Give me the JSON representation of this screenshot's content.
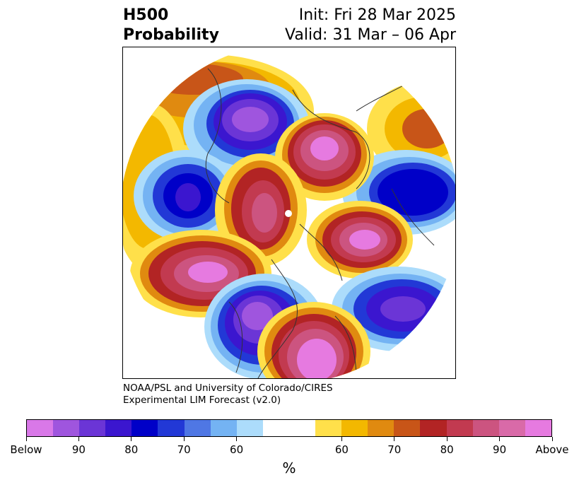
{
  "title": {
    "left_line1": "H500",
    "left_line2": "Probability",
    "right_line1": "Init: Fri 28 Mar 2025",
    "right_line2": "Valid: 31 Mar – 06 Apr"
  },
  "credit": {
    "line1": "NOAA/PSL and University of Colorado/CIRES",
    "line2": "Experimental LIM Forecast (v2.0)"
  },
  "colorbar": {
    "colors": [
      "#d978e8",
      "#9f55de",
      "#6b35d6",
      "#3b16cf",
      "#0000c8",
      "#2238d6",
      "#4f77e4",
      "#74b3f3",
      "#acdcfb",
      "#ffffff",
      "#ffffff",
      "#ffe04a",
      "#f3b800",
      "#e08a10",
      "#c85518",
      "#b22424",
      "#c23a50",
      "#cc5480",
      "#d96aa8",
      "#e67ae0"
    ],
    "tick_labels": [
      "Below",
      "90",
      "80",
      "70",
      "60",
      "60",
      "70",
      "80",
      "90",
      "Above"
    ],
    "unit": "%"
  },
  "map": {
    "projection": "north polar stereographic",
    "variable": "500 hPa height anomaly probability"
  }
}
